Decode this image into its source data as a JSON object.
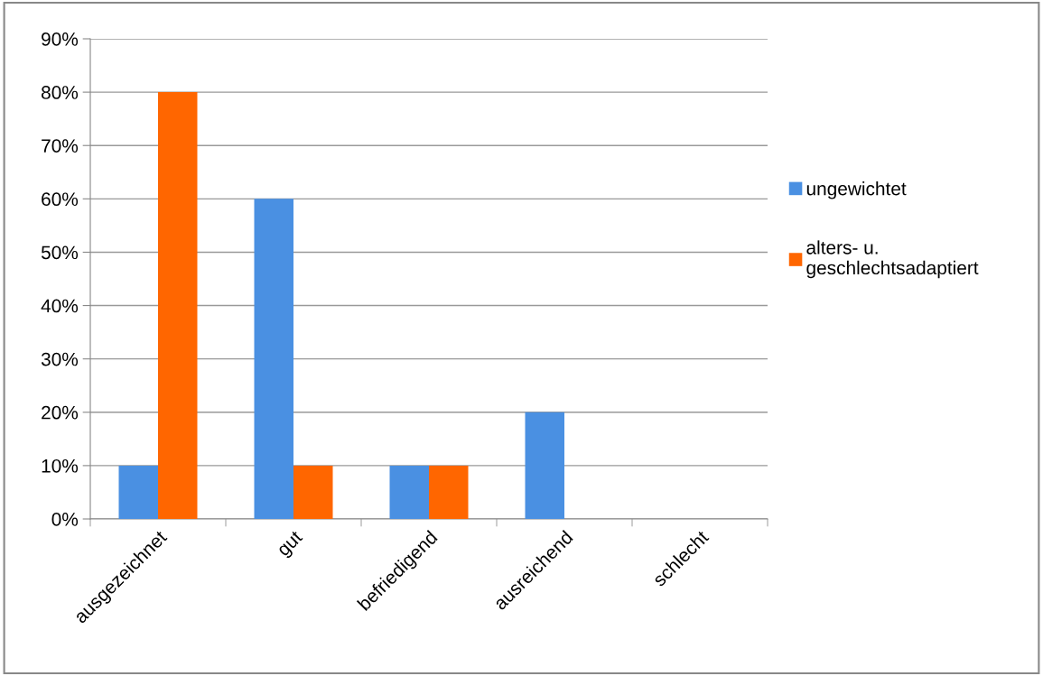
{
  "chart_data": {
    "type": "bar",
    "categories": [
      "ausgezeichnet",
      "gut",
      "befriedigend",
      "ausreichend",
      "schlecht"
    ],
    "series": [
      {
        "name": "ungewichtet",
        "color": "#4a90e2",
        "values": [
          10,
          60,
          10,
          20,
          0
        ]
      },
      {
        "name": "alters- u.\ngeschlechtsadaptiert",
        "color": "#ff6600",
        "values": [
          80,
          10,
          10,
          0,
          0
        ]
      }
    ],
    "ylim": [
      0,
      90
    ],
    "yticks": [
      {
        "value": 0,
        "label": "0%"
      },
      {
        "value": 10,
        "label": "10%"
      },
      {
        "value": 20,
        "label": "20%"
      },
      {
        "value": 30,
        "label": "30%"
      },
      {
        "value": 40,
        "label": "40%"
      },
      {
        "value": 50,
        "label": "50%"
      },
      {
        "value": 60,
        "label": "60%"
      },
      {
        "value": 70,
        "label": "70%"
      },
      {
        "value": 80,
        "label": "80%"
      },
      {
        "value": 90,
        "label": "90%"
      }
    ],
    "grid": "y",
    "legend": "right"
  }
}
